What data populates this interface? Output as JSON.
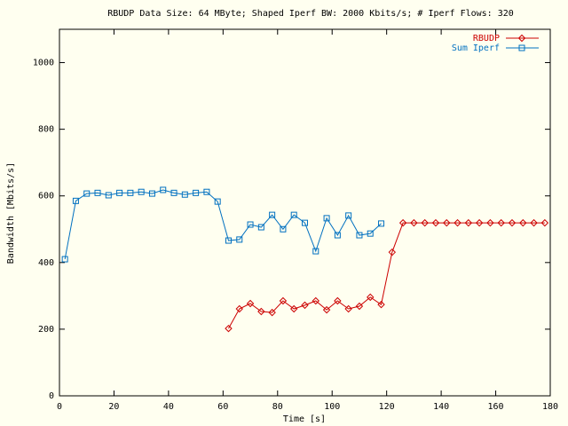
{
  "chart_data": {
    "type": "line",
    "title": "RBUDP Data Size: 64 MByte; Shaped Iperf BW: 2000 Kbits/s; # Iperf Flows: 320",
    "xlabel": "Time [s]",
    "ylabel": "Bandwidth [Mbits/s]",
    "xlim": [
      0,
      180
    ],
    "ylim": [
      0,
      1100
    ],
    "xticks": [
      0,
      20,
      40,
      60,
      80,
      100,
      120,
      140,
      160,
      180
    ],
    "yticks": [
      0,
      200,
      400,
      600,
      800,
      1000
    ],
    "legend": "upper right",
    "series": [
      {
        "name": "RBUDP",
        "color": "#cc0000",
        "marker": "diamond",
        "x": [
          62,
          66,
          70,
          74,
          78,
          82,
          86,
          90,
          94,
          98,
          102,
          106,
          110,
          114,
          118,
          122,
          126,
          130,
          134,
          138,
          142,
          146,
          150,
          154,
          158,
          162,
          166,
          170,
          174,
          178
        ],
        "values": [
          202,
          261,
          277,
          253,
          250,
          285,
          261,
          272,
          285,
          258,
          285,
          261,
          269,
          296,
          274,
          431,
          519,
          519,
          519,
          519,
          519,
          519,
          519,
          519,
          519,
          519,
          519,
          519,
          519,
          519
        ]
      },
      {
        "name": "Sum Iperf",
        "color": "#0070c0",
        "marker": "square",
        "x": [
          2,
          6,
          10,
          14,
          18,
          22,
          26,
          30,
          34,
          38,
          42,
          46,
          50,
          54,
          58,
          62,
          66,
          70,
          74,
          78,
          82,
          86,
          90,
          94,
          98,
          102,
          106,
          110,
          114,
          118
        ],
        "values": [
          410,
          585,
          607,
          609,
          602,
          609,
          609,
          612,
          607,
          618,
          609,
          604,
          609,
          612,
          583,
          466,
          469,
          514,
          506,
          543,
          500,
          543,
          519,
          434,
          533,
          482,
          541,
          482,
          487,
          517
        ]
      }
    ]
  }
}
